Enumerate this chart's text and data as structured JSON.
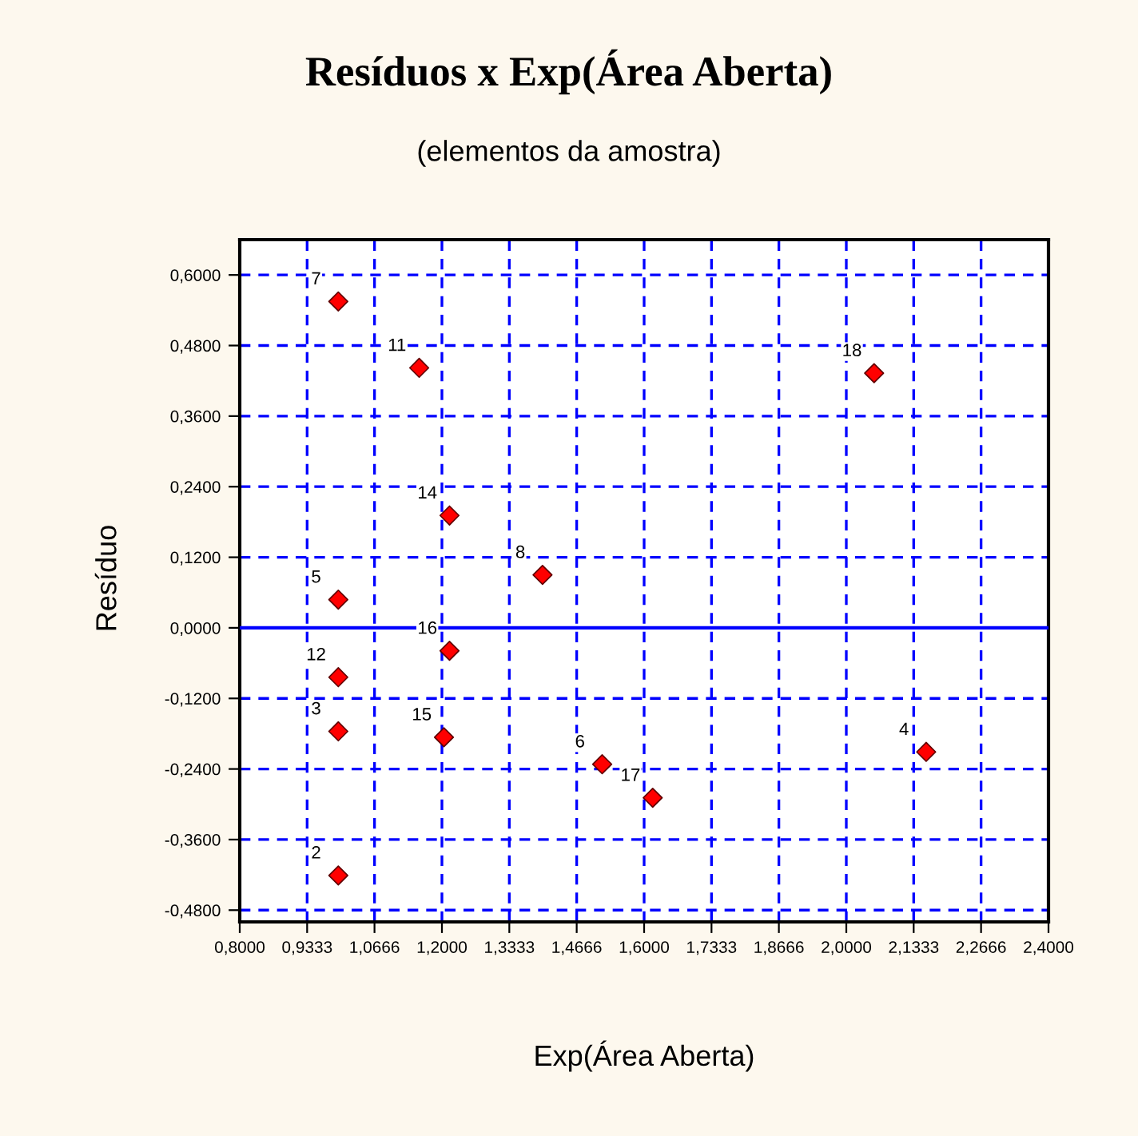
{
  "chart_data": {
    "type": "scatter",
    "title": "Resíduos x Exp(Área Aberta)",
    "subtitle": "(elementos da amostra)",
    "xlabel": "Exp(Área Aberta)",
    "ylabel": "Resíduo",
    "x": [
      0.995,
      1.155,
      1.215,
      1.399,
      0.995,
      1.215,
      0.995,
      0.995,
      1.204,
      1.517,
      0.995,
      1.617,
      2.158,
      2.055
    ],
    "series": [
      {
        "color": "#ff0000",
        "values": [
          0.555,
          0.442,
          0.191,
          0.09,
          0.048,
          -0.039,
          -0.084,
          -0.176,
          -0.186,
          -0.232,
          -0.421,
          -0.289,
          -0.211,
          0.433
        ]
      }
    ],
    "annotations": [
      {
        "text": "7",
        "x": 0.995,
        "y": 0.555
      },
      {
        "text": "11",
        "x": 1.155,
        "y": 0.442
      },
      {
        "text": "14",
        "x": 1.215,
        "y": 0.191
      },
      {
        "text": "8",
        "x": 1.399,
        "y": 0.09
      },
      {
        "text": "5",
        "x": 0.995,
        "y": 0.048
      },
      {
        "text": "16",
        "x": 1.215,
        "y": -0.039
      },
      {
        "text": "12",
        "x": 0.995,
        "y": -0.084
      },
      {
        "text": "3",
        "x": 0.995,
        "y": -0.176
      },
      {
        "text": "15",
        "x": 1.204,
        "y": -0.186
      },
      {
        "text": "6",
        "x": 1.517,
        "y": -0.232
      },
      {
        "text": "2",
        "x": 0.995,
        "y": -0.421
      },
      {
        "text": "17",
        "x": 1.617,
        "y": -0.289
      },
      {
        "text": "4",
        "x": 2.158,
        "y": -0.211
      },
      {
        "text": "18",
        "x": 2.055,
        "y": 0.433
      }
    ],
    "xlim": [
      0.8,
      2.4
    ],
    "ylim": [
      -0.5,
      0.66
    ],
    "xticks": [
      {
        "value": 0.8,
        "label": "0,8000"
      },
      {
        "value": 0.9333,
        "label": "0,9333"
      },
      {
        "value": 1.0666,
        "label": "1,0666"
      },
      {
        "value": 1.2,
        "label": "1,2000"
      },
      {
        "value": 1.3333,
        "label": "1,3333"
      },
      {
        "value": 1.4666,
        "label": "1,4666"
      },
      {
        "value": 1.6,
        "label": "1,6000"
      },
      {
        "value": 1.7333,
        "label": "1,7333"
      },
      {
        "value": 1.8666,
        "label": "1,8666"
      },
      {
        "value": 2.0,
        "label": "2,0000"
      },
      {
        "value": 2.1333,
        "label": "2,1333"
      },
      {
        "value": 2.2666,
        "label": "2,2666"
      },
      {
        "value": 2.4,
        "label": "2,4000"
      }
    ],
    "yticks": [
      {
        "value": 0.6,
        "label": "0,6000"
      },
      {
        "value": 0.48,
        "label": "0,4800"
      },
      {
        "value": 0.36,
        "label": "0,3600"
      },
      {
        "value": 0.24,
        "label": "0,2400"
      },
      {
        "value": 0.12,
        "label": "0,1200"
      },
      {
        "value": 0,
        "label": "0,0000"
      },
      {
        "value": -0.12,
        "label": "-0,1200"
      },
      {
        "value": -0.24,
        "label": "-0,2400"
      },
      {
        "value": -0.36,
        "label": "-0,3600"
      },
      {
        "value": -0.48,
        "label": "-0,4800"
      }
    ],
    "ref_lines": [
      {
        "axis": "y",
        "value": 0,
        "color": "#0000ff",
        "line_style": "solid"
      }
    ],
    "grid": true,
    "marker": "diamond",
    "legend": false
  }
}
